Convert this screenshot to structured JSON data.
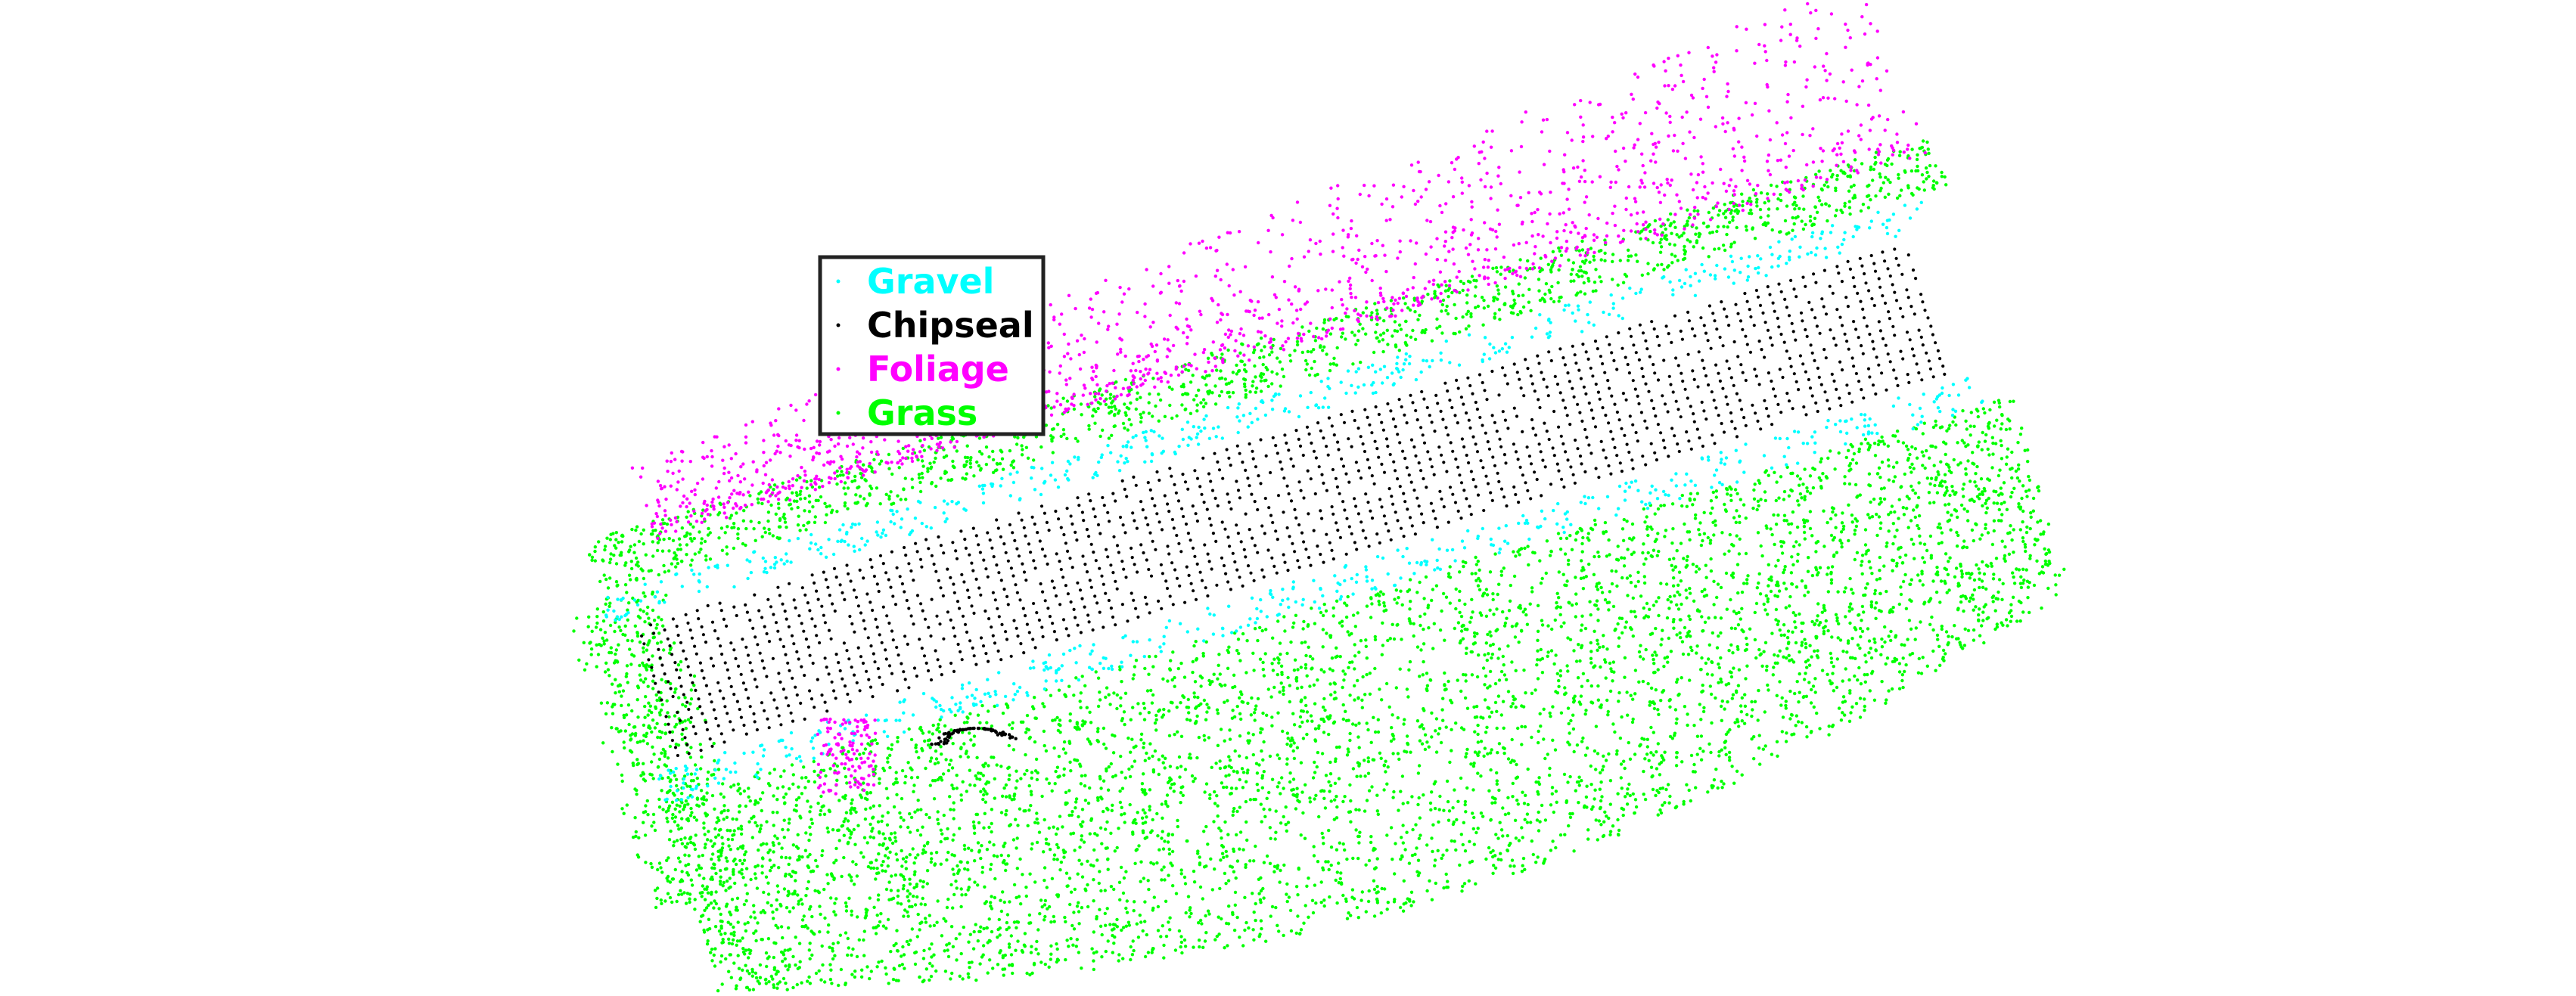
{
  "chart_data": {
    "type": "scatter",
    "title": "",
    "xlabel": "",
    "ylabel": "",
    "grid": false,
    "axes_visible": false,
    "legend_placement": "upper-left",
    "series": [
      {
        "name": "Gravel",
        "color": "#00ffff"
      },
      {
        "name": "Chipseal",
        "color": "#000000"
      },
      {
        "name": "Foliage",
        "color": "#ff00ff"
      },
      {
        "name": "Grass",
        "color": "#00ff00"
      }
    ]
  }
}
